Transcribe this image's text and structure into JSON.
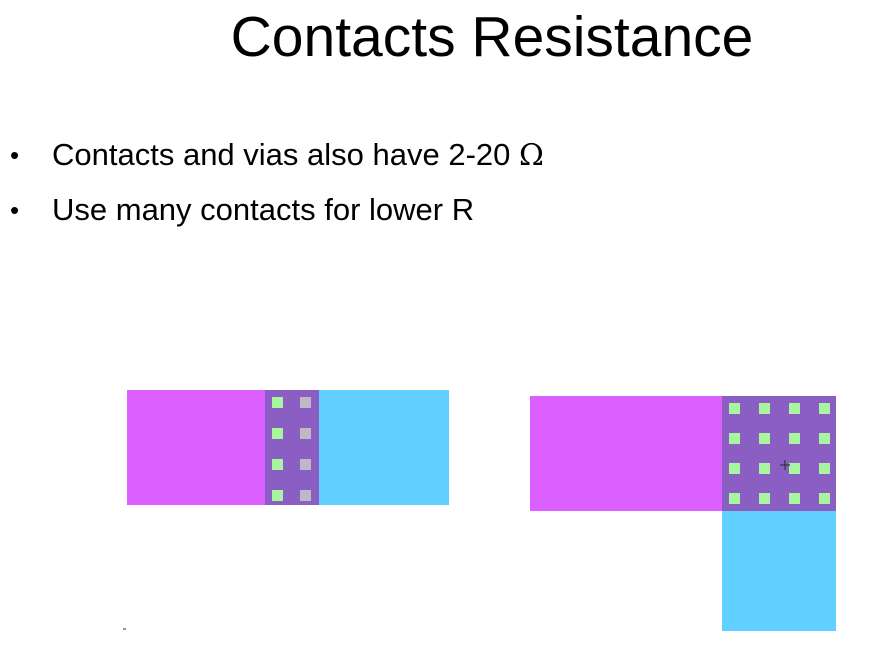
{
  "slide": {
    "title": "Contacts Resistance",
    "bullets": [
      {
        "text": "Contacts and vias also have 2-20 ",
        "symbol": "Ω"
      },
      {
        "text": "Use many contacts for lower R",
        "symbol": ""
      }
    ]
  },
  "figure": {
    "colors": {
      "layer_a": "#dc60ff",
      "layer_b": "#5fd0ff",
      "overlap": "#8a5ec2",
      "contact": "#a8f5a0",
      "contact_grey": "#c0b8c4"
    },
    "left_layout": {
      "contact_rows": 4,
      "contact_cols": 2
    },
    "right_layout": {
      "contact_rows": 4,
      "contact_cols": 4
    }
  }
}
